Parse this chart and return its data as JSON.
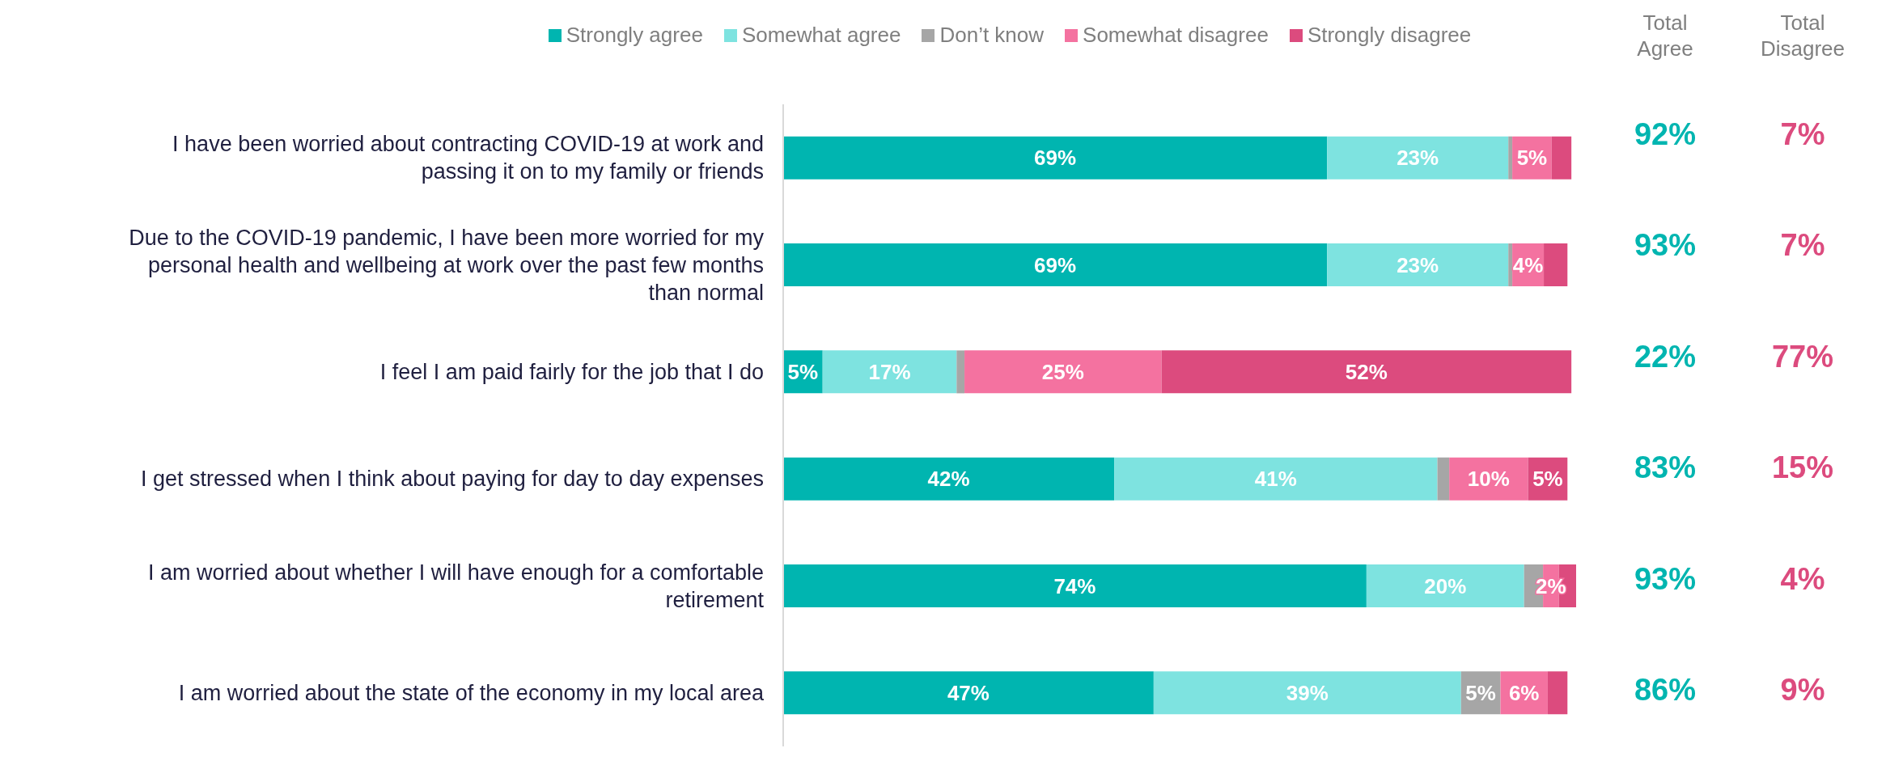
{
  "chart_data": {
    "type": "bar",
    "orientation": "horizontal",
    "stacked": true,
    "legend": "top",
    "categories": [
      "I have been worried about contracting COVID-19 at work and passing it on to my family or friends",
      "Due to the COVID-19 pandemic, I have been more worried for my personal health and wellbeing at work over the past few months than normal",
      "I feel I am paid fairly for the job that I do",
      "I get stressed when I think about paying for day to day expenses",
      "I am worried about whether I will have enough for a comfortable retirement",
      "I am worried about the state of the economy in my local area"
    ],
    "series": [
      {
        "name": "Strongly agree",
        "color": "#00b5b0",
        "values": [
          69,
          69,
          5,
          42,
          74,
          47
        ],
        "value_labels": [
          "69%",
          "69%",
          "5%",
          "42%",
          "74%",
          "47%"
        ]
      },
      {
        "name": "Somewhat agree",
        "color": "#7ee3e0",
        "values": [
          23,
          23,
          17,
          41,
          20,
          39
        ],
        "value_labels": [
          "23%",
          "23%",
          "17%",
          "41%",
          "20%",
          "39%"
        ]
      },
      {
        "name": "Don’t know",
        "color": "#a6a6a6",
        "values": [
          0.5,
          0.5,
          1,
          1.5,
          2.4,
          5
        ],
        "value_labels": [
          null,
          null,
          null,
          null,
          null,
          "5%"
        ]
      },
      {
        "name": "Somewhat disagree",
        "color": "#f472a0",
        "values": [
          5,
          4,
          25,
          10,
          2,
          6
        ],
        "value_labels": [
          "5%",
          "4%",
          "25%",
          "10%",
          "2%",
          "6%"
        ]
      },
      {
        "name": "Strongly disagree",
        "color": "#dc4b7e",
        "values": [
          2.5,
          3,
          52,
          5,
          2.2,
          2.5
        ],
        "value_labels": [
          null,
          null,
          "52%",
          "5%",
          null,
          null
        ]
      }
    ],
    "annotations": [
      "Total Agree",
      "Total Disagree",
      "92%",
      "7%",
      "93%",
      "7%",
      "22%",
      "77%",
      "83%",
      "15%",
      "93%",
      "4%",
      "86%",
      "9%"
    ]
  }
}
